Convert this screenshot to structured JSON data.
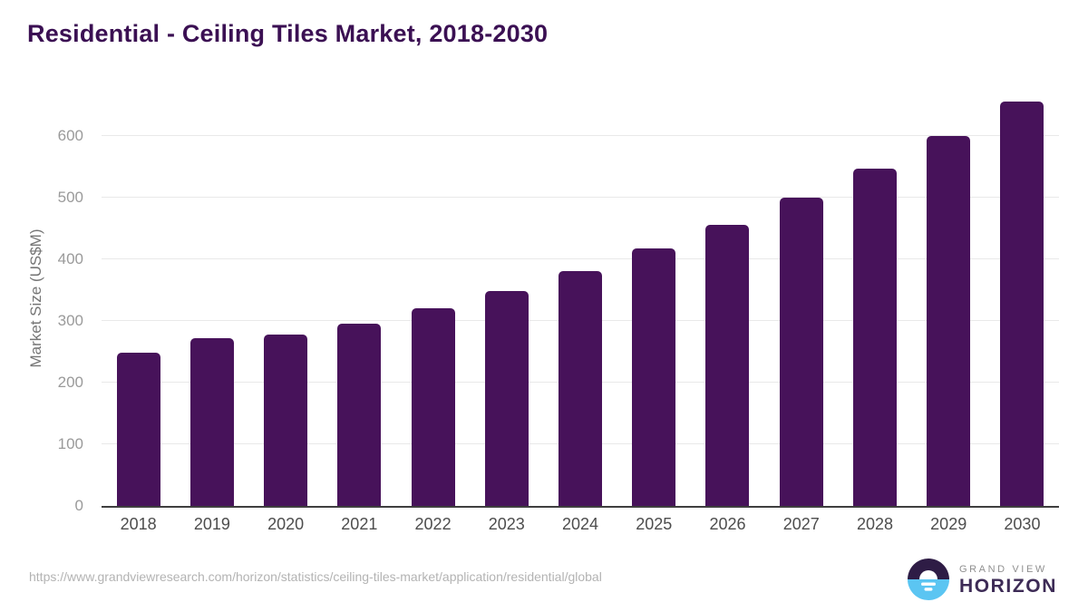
{
  "header": {
    "title": "Residential - Ceiling Tiles Market, 2018-2030",
    "title_color": "#3b1053"
  },
  "chart_data": {
    "type": "bar",
    "title": "Residential - Ceiling Tiles Market, 2018-2030",
    "categories": [
      "2018",
      "2019",
      "2020",
      "2021",
      "2022",
      "2023",
      "2024",
      "2025",
      "2026",
      "2027",
      "2028",
      "2029",
      "2030"
    ],
    "values": [
      249,
      272,
      278,
      296,
      321,
      349,
      381,
      417,
      455,
      499,
      547,
      599,
      655
    ],
    "xlabel": "",
    "ylabel": "Market Size (US$M)",
    "ylim": [
      0,
      673
    ],
    "yticks": [
      0,
      100,
      200,
      300,
      400,
      500,
      600
    ],
    "grid": true,
    "legend": "none",
    "bar_color": "#47125a",
    "gridline_color": "#e9e9e9",
    "axis_line_color": "#3f3f3f"
  },
  "footer": {
    "source_url": "https://www.grandviewresearch.com/horizon/statistics/ceiling-tiles-market/application/residential/global",
    "logo": {
      "line1": "GRAND VIEW",
      "line2": "HORIZON",
      "mark_top_color": "#2e1c45",
      "mark_bottom_color": "#5bc5f2"
    }
  }
}
